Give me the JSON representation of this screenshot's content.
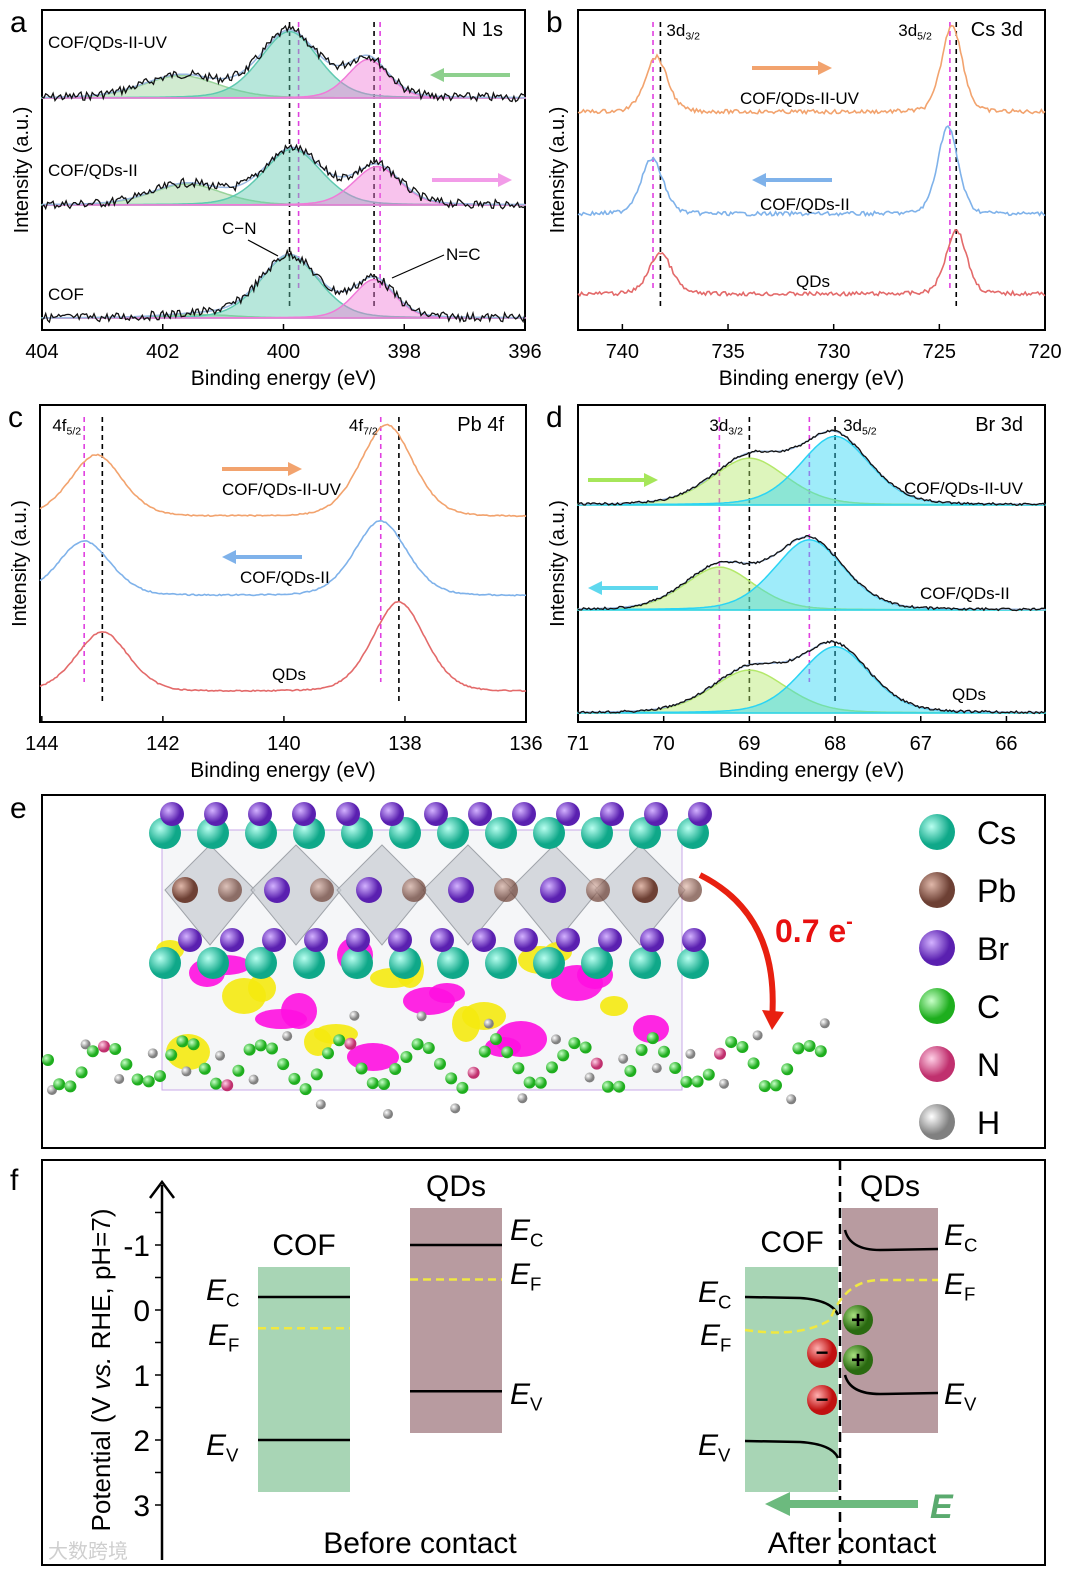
{
  "chart_data": [
    {
      "panel": "a",
      "type": "line",
      "title": "N 1s",
      "xlabel": "Binding energy (eV)",
      "ylabel": "Intensity (a.u.)",
      "xlim": [
        404,
        396
      ],
      "xticks": [
        404,
        402,
        400,
        398,
        396
      ],
      "series": [
        {
          "name": "COF/QDs-II-UV",
          "peaks": [
            [
              401.7,
              0.32,
              0.65
            ],
            [
              399.9,
              0.95,
              0.5
            ],
            [
              398.6,
              0.55,
              0.35
            ]
          ]
        },
        {
          "name": "COF/QDs-II",
          "peaks": [
            [
              401.6,
              0.3,
              0.6
            ],
            [
              399.85,
              0.8,
              0.5
            ],
            [
              398.45,
              0.55,
              0.4
            ]
          ]
        },
        {
          "name": "COF",
          "peaks": [
            [
              401.4,
              0.05,
              0.6
            ],
            [
              399.9,
              0.9,
              0.5
            ],
            [
              398.5,
              0.55,
              0.35
            ]
          ]
        }
      ],
      "ref_lines_black": [
        399.9,
        398.5
      ],
      "ref_lines_magenta": [
        399.75,
        398.4
      ],
      "annotations": [
        "C−N",
        "N=C"
      ],
      "arrows": [
        {
          "series": "COF/QDs-II-UV",
          "direction": "left",
          "color": "#8ed08e"
        },
        {
          "series": "COF/QDs-II",
          "direction": "right",
          "color": "#f29ce8"
        }
      ]
    },
    {
      "panel": "b",
      "type": "line",
      "title": "Cs 3d",
      "xlabel": "Binding energy (eV)",
      "ylabel": "Intensity (a.u.)",
      "xlim": [
        742.1,
        720
      ],
      "xticks": [
        740,
        735,
        730,
        725,
        720
      ],
      "peak_labels": [
        {
          "main": "3d",
          "sub": "3/2"
        },
        {
          "main": "3d",
          "sub": "5/2"
        }
      ],
      "series": [
        {
          "name": "COF/QDs-II-UV",
          "color": "#f2a36e",
          "peaks": [
            [
              738.4,
              0.6,
              0.55
            ],
            [
              724.4,
              0.95,
              0.5
            ]
          ]
        },
        {
          "name": "COF/QDs-II",
          "color": "#7fb2ea",
          "peaks": [
            [
              738.6,
              0.6,
              0.55
            ],
            [
              724.6,
              0.95,
              0.5
            ]
          ]
        },
        {
          "name": "QDs",
          "color": "#e36a6a",
          "peaks": [
            [
              738.2,
              0.45,
              0.55
            ],
            [
              724.2,
              0.7,
              0.5
            ]
          ]
        }
      ],
      "ref_lines_black": [
        738.2,
        724.2
      ],
      "ref_lines_magenta": [
        738.55,
        724.5
      ],
      "arrows": [
        {
          "series": "COF/QDs-II-UV",
          "direction": "right",
          "color": "#f2a36e"
        },
        {
          "series": "COF/QDs-II",
          "direction": "left",
          "color": "#7fb2ea"
        }
      ]
    },
    {
      "panel": "c",
      "type": "line",
      "title": "Pb 4f",
      "xlabel": "Binding energy (eV)",
      "ylabel": "Intensity (a.u.)",
      "xlim": [
        144.03,
        136
      ],
      "xticks": [
        144,
        142,
        140,
        138,
        136
      ],
      "peak_labels": [
        {
          "main": "4f",
          "sub": "5/2"
        },
        {
          "main": "4f",
          "sub": "7/2"
        }
      ],
      "series": [
        {
          "name": "COF/QDs-II-UV",
          "color": "#f2a36e",
          "peaks": [
            [
              143.1,
              0.62,
              0.45
            ],
            [
              138.3,
              0.92,
              0.45
            ]
          ]
        },
        {
          "name": "COF/QDs-II",
          "color": "#7fb2ea",
          "peaks": [
            [
              143.3,
              0.55,
              0.45
            ],
            [
              138.4,
              0.75,
              0.45
            ]
          ]
        },
        {
          "name": "QDs",
          "color": "#e36a6a",
          "peaks": [
            [
              143.0,
              0.6,
              0.45
            ],
            [
              138.1,
              0.9,
              0.45
            ]
          ]
        }
      ],
      "ref_lines_black": [
        143.0,
        138.1
      ],
      "ref_lines_magenta": [
        143.3,
        138.4
      ],
      "arrows": [
        {
          "series": "COF/QDs-II-UV",
          "direction": "right",
          "color": "#f2a36e"
        },
        {
          "series": "COF/QDs-II",
          "direction": "left",
          "color": "#7fb2ea"
        }
      ]
    },
    {
      "panel": "d",
      "type": "line",
      "title": "Br 3d",
      "xlabel": "Binding energy (eV)",
      "ylabel": "Intensity (a.u.)",
      "xlim": [
        71,
        65.55
      ],
      "xticks": [
        71,
        70,
        69,
        68,
        67,
        66
      ],
      "peak_labels": [
        {
          "main": "3d",
          "sub": "3/2"
        },
        {
          "main": "3d",
          "sub": "5/2"
        }
      ],
      "series": [
        {
          "name": "COF/QDs-II-UV",
          "peaks": [
            [
              69.0,
              0.6,
              0.45
            ],
            [
              68.0,
              0.88,
              0.42
            ]
          ]
        },
        {
          "name": "COF/QDs-II",
          "peaks": [
            [
              69.35,
              0.55,
              0.42
            ],
            [
              68.3,
              0.9,
              0.42
            ]
          ]
        },
        {
          "name": "QDs",
          "peaks": [
            [
              69.0,
              0.55,
              0.45
            ],
            [
              68.0,
              0.85,
              0.42
            ]
          ]
        }
      ],
      "ref_lines_black": [
        69.0,
        68.0
      ],
      "ref_lines_magenta": [
        69.35,
        68.3
      ],
      "arrows": [
        {
          "series": "COF/QDs-II-UV",
          "direction": "right",
          "color": "#a6e65a"
        },
        {
          "series": "COF/QDs-II",
          "direction": "left",
          "color": "#5fd8ee"
        }
      ]
    },
    {
      "panel": "f",
      "type": "energy-diagram",
      "ylabel": "Potential (V vs. RHE, pH=7)",
      "ylabel_parts": [
        "Potential (V ",
        "vs.",
        " RHE, pH=7)"
      ],
      "ylim": [
        -1.7,
        3.3
      ],
      "yticks": [
        "-1",
        "0",
        "1",
        "2",
        "3"
      ],
      "before": {
        "caption": "Before contact",
        "COF": {
          "label": "COF",
          "EC": -0.2,
          "EF": 0.28,
          "EV": 2.0
        },
        "QDs": {
          "label": "QDs",
          "EC": -1.0,
          "EF": -0.47,
          "EV": 1.25
        }
      },
      "after": {
        "caption": "After contact",
        "field_label": "E",
        "charges": {
          "negative": "−",
          "positive": "+"
        }
      },
      "levels": {
        "EC": {
          "main": "E",
          "sub": "C"
        },
        "EF": {
          "main": "E",
          "sub": "F"
        },
        "EV": {
          "main": "E",
          "sub": "V"
        }
      }
    }
  ],
  "panel_letters": [
    "a",
    "b",
    "c",
    "d",
    "e",
    "f"
  ],
  "panel_e": {
    "charge_transfer": "0.7 e",
    "charge_sup": "-",
    "legend": [
      {
        "label": "Cs",
        "color": "#1fc9a6"
      },
      {
        "label": "Pb",
        "color": "#8a5a4c"
      },
      {
        "label": "Br",
        "color": "#7a3fd0"
      },
      {
        "label": "C",
        "color": "#3fd63f"
      },
      {
        "label": "N",
        "color": "#e6559a"
      },
      {
        "label": "H",
        "color": "#a8a8a8"
      }
    ]
  },
  "watermark": "大数跨境"
}
